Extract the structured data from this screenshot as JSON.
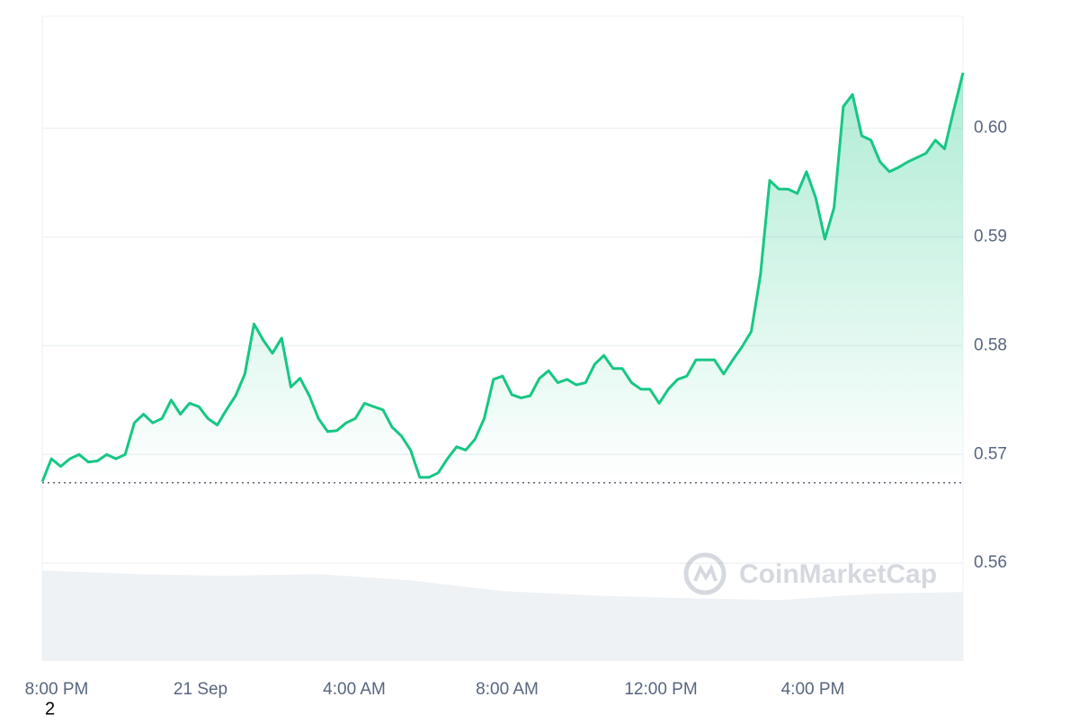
{
  "chart_data": {
    "type": "line",
    "series": [
      {
        "color": "#16c784",
        "values": [
          0.5675,
          0.5696,
          0.5689,
          0.5696,
          0.57,
          0.5693,
          0.5694,
          0.57,
          0.5696,
          0.57,
          0.5729,
          0.5737,
          0.5729,
          0.5733,
          0.575,
          0.5737,
          0.5747,
          0.5744,
          0.5733,
          0.5727,
          0.5741,
          0.5754,
          0.5774,
          0.582,
          0.5805,
          0.5793,
          0.5807,
          0.5762,
          0.577,
          0.5754,
          0.5733,
          0.5721,
          0.5722,
          0.5729,
          0.5733,
          0.5747,
          0.5744,
          0.5741,
          0.5725,
          0.5717,
          0.5704,
          0.5679,
          0.5679,
          0.5683,
          0.5696,
          0.5707,
          0.5704,
          0.5714,
          0.5733,
          0.5769,
          0.5772,
          0.5755,
          0.5752,
          0.5754,
          0.577,
          0.5777,
          0.5766,
          0.5769,
          0.5764,
          0.5766,
          0.5783,
          0.5791,
          0.5779,
          0.5779,
          0.5766,
          0.576,
          0.576,
          0.5747,
          0.576,
          0.5769,
          0.5772,
          0.5787,
          0.5787,
          0.5787,
          0.5774,
          0.5787,
          0.5799,
          0.5813,
          0.5865,
          0.5952,
          0.5944,
          0.5944,
          0.594,
          0.596,
          0.5936,
          0.5898,
          0.5927,
          0.602,
          0.6031,
          0.5993,
          0.5989,
          0.5969,
          0.596,
          0.5964,
          0.5969,
          0.5973,
          0.5977,
          0.5989,
          0.5981,
          0.6017,
          0.6051
        ]
      }
    ],
    "volume": {
      "color": "#eff2f5",
      "values": [
        0.55934,
        0.55901,
        0.55884,
        0.55901,
        0.55843,
        0.55744,
        0.55702,
        0.55678,
        0.55661,
        0.55719,
        0.55736
      ]
    },
    "reference_line": 0.5674,
    "xlim": [
      0,
      100
    ],
    "xticks": [
      {
        "value": 1.56,
        "label": "8:00 PM"
      },
      {
        "value": 17.19,
        "label": "21 Sep"
      },
      {
        "value": 33.89,
        "label": "4:00 AM"
      },
      {
        "value": 50.49,
        "label": "8:00 AM"
      },
      {
        "value": 67.19,
        "label": "12:00 PM"
      },
      {
        "value": 83.69,
        "label": "4:00 PM"
      }
    ],
    "ylim": [
      0.551,
      0.6103
    ],
    "yticks": [
      0.56,
      0.57,
      0.58,
      0.59,
      {
        "value": 0.6,
        "label": "0.60"
      }
    ],
    "grid": true,
    "watermark": "CoinMarketCap",
    "annotation": "2"
  }
}
